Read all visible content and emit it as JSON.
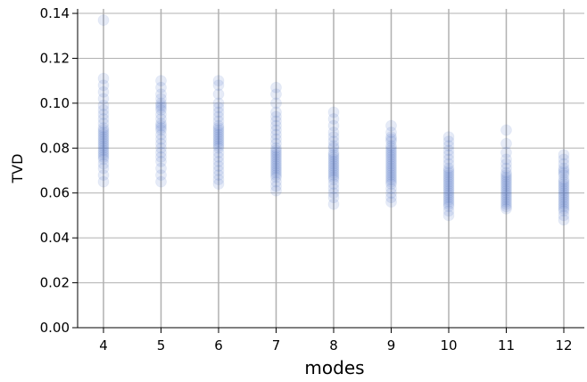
{
  "chart_data": {
    "type": "scatter",
    "title": "",
    "xlabel": "modes",
    "ylabel": "TVD",
    "categories": [
      "4",
      "5",
      "6",
      "7",
      "8",
      "9",
      "10",
      "11",
      "12"
    ],
    "ylim": [
      0,
      0.142
    ],
    "yticks": [
      0.0,
      0.02,
      0.04,
      0.06,
      0.08,
      0.1,
      0.12,
      0.14
    ],
    "ytick_labels": [
      "0.00",
      "0.02",
      "0.04",
      "0.06",
      "0.08",
      "0.10",
      "0.12",
      "0.14"
    ],
    "grid": true,
    "point_color": "#3a67c2",
    "grid_color": "#b0b0b0",
    "series": [
      {
        "x": "4",
        "values": [
          0.137,
          0.111,
          0.108,
          0.105,
          0.102,
          0.099,
          0.097,
          0.095,
          0.093,
          0.091,
          0.089,
          0.088,
          0.087,
          0.086,
          0.085,
          0.084,
          0.083,
          0.082,
          0.081,
          0.08,
          0.079,
          0.078,
          0.077,
          0.076,
          0.075,
          0.073,
          0.071,
          0.068,
          0.065
        ]
      },
      {
        "x": "5",
        "values": [
          0.11,
          0.107,
          0.104,
          0.102,
          0.1,
          0.099,
          0.098,
          0.097,
          0.095,
          0.093,
          0.091,
          0.09,
          0.089,
          0.088,
          0.086,
          0.084,
          0.082,
          0.08,
          0.078,
          0.076,
          0.074,
          0.071,
          0.068,
          0.065
        ]
      },
      {
        "x": "6",
        "values": [
          0.11,
          0.108,
          0.104,
          0.1,
          0.098,
          0.096,
          0.094,
          0.092,
          0.09,
          0.089,
          0.088,
          0.087,
          0.086,
          0.085,
          0.084,
          0.083,
          0.082,
          0.081,
          0.08,
          0.078,
          0.076,
          0.074,
          0.072,
          0.07,
          0.068,
          0.066,
          0.064
        ]
      },
      {
        "x": "7",
        "values": [
          0.107,
          0.104,
          0.1,
          0.096,
          0.094,
          0.092,
          0.09,
          0.088,
          0.086,
          0.084,
          0.082,
          0.08,
          0.079,
          0.078,
          0.077,
          0.076,
          0.075,
          0.074,
          0.073,
          0.072,
          0.071,
          0.07,
          0.069,
          0.068,
          0.067,
          0.065,
          0.063,
          0.061
        ]
      },
      {
        "x": "8",
        "values": [
          0.096,
          0.093,
          0.09,
          0.087,
          0.085,
          0.083,
          0.081,
          0.08,
          0.078,
          0.077,
          0.076,
          0.075,
          0.074,
          0.073,
          0.072,
          0.071,
          0.07,
          0.069,
          0.068,
          0.067,
          0.066,
          0.064,
          0.062,
          0.06,
          0.058,
          0.055
        ]
      },
      {
        "x": "9",
        "values": [
          0.09,
          0.087,
          0.085,
          0.084,
          0.083,
          0.081,
          0.08,
          0.079,
          0.078,
          0.077,
          0.076,
          0.075,
          0.074,
          0.073,
          0.072,
          0.071,
          0.07,
          0.069,
          0.068,
          0.067,
          0.066,
          0.065,
          0.064,
          0.062,
          0.06,
          0.058,
          0.056
        ]
      },
      {
        "x": "10",
        "values": [
          0.085,
          0.083,
          0.081,
          0.079,
          0.077,
          0.075,
          0.073,
          0.071,
          0.07,
          0.069,
          0.068,
          0.067,
          0.066,
          0.065,
          0.064,
          0.063,
          0.062,
          0.061,
          0.06,
          0.059,
          0.058,
          0.057,
          0.056,
          0.055,
          0.054,
          0.052,
          0.05
        ]
      },
      {
        "x": "11",
        "values": [
          0.088,
          0.082,
          0.078,
          0.075,
          0.073,
          0.071,
          0.069,
          0.068,
          0.067,
          0.066,
          0.065,
          0.064,
          0.063,
          0.062,
          0.061,
          0.06,
          0.059,
          0.058,
          0.057,
          0.056,
          0.055,
          0.054,
          0.053
        ]
      },
      {
        "x": "12",
        "values": [
          0.077,
          0.075,
          0.073,
          0.071,
          0.07,
          0.069,
          0.068,
          0.066,
          0.065,
          0.064,
          0.063,
          0.062,
          0.061,
          0.06,
          0.059,
          0.058,
          0.057,
          0.056,
          0.055,
          0.054,
          0.053,
          0.052,
          0.05,
          0.048
        ]
      }
    ]
  }
}
